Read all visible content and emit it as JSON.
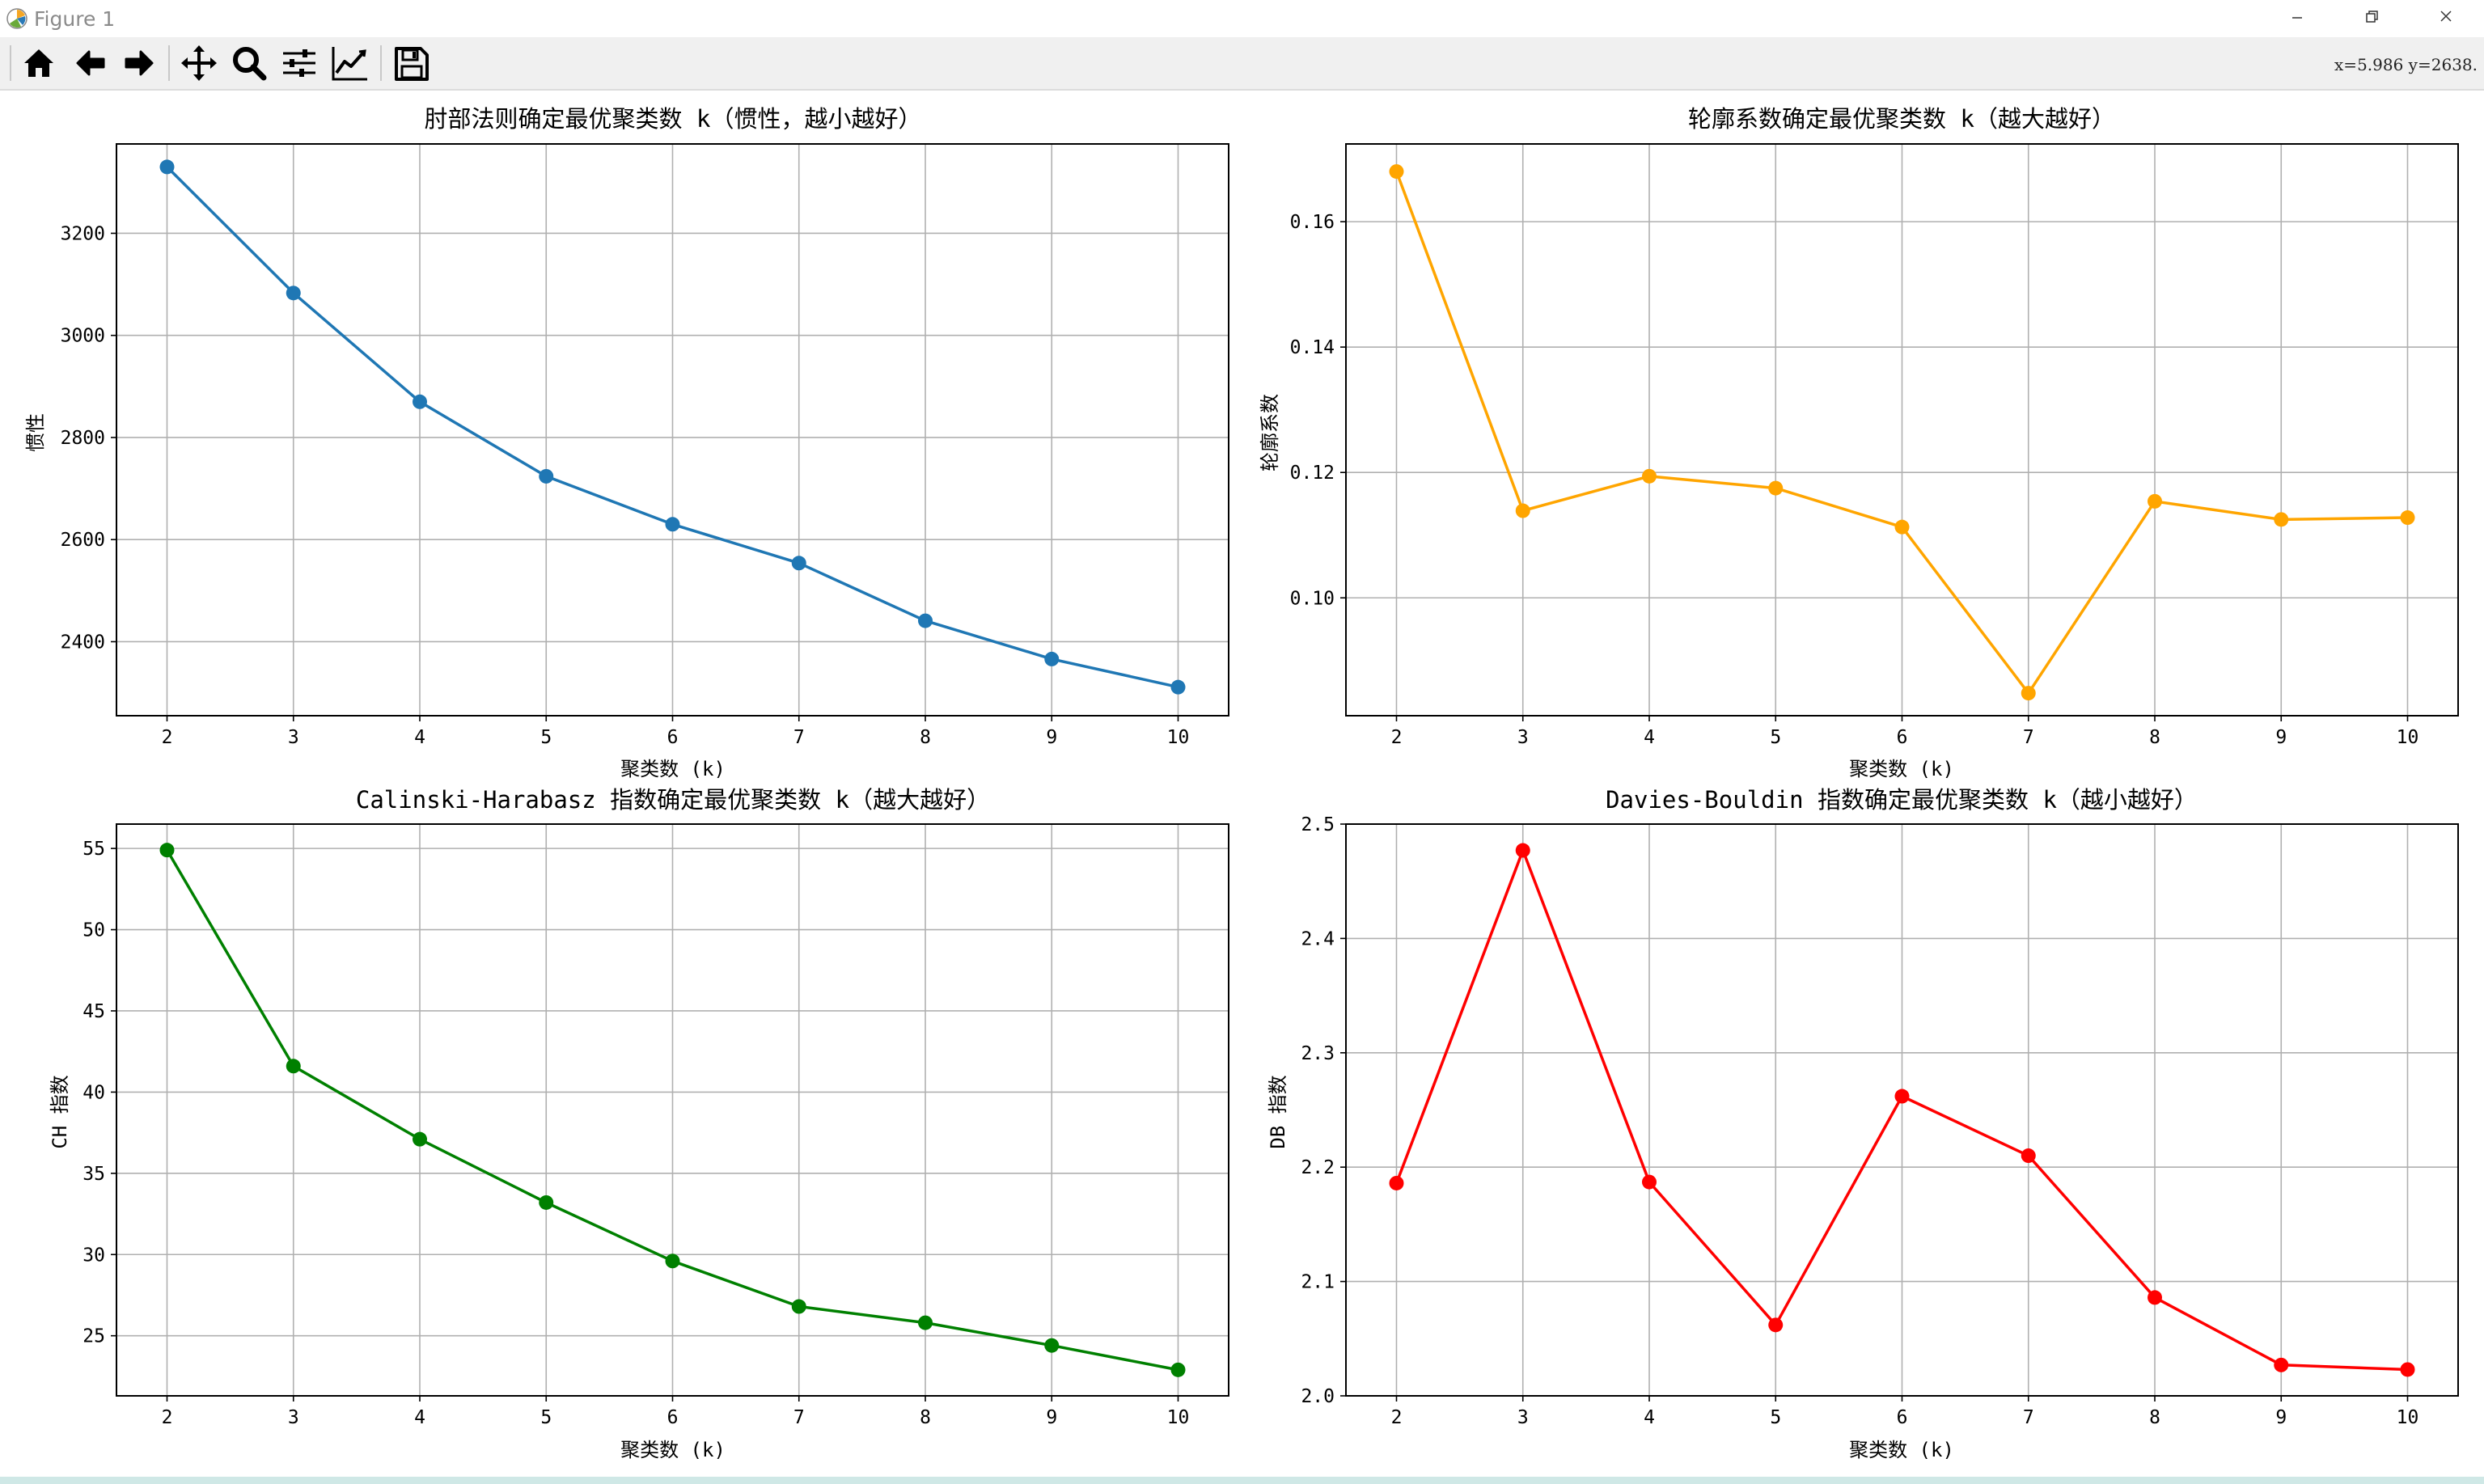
{
  "window": {
    "title": "Figure 1"
  },
  "toolbar": {
    "buttons": [
      "home-icon",
      "back-arrow-icon",
      "forward-arrow-icon",
      "pan-icon",
      "zoom-icon",
      "configure-subplots-icon",
      "edit-axes-icon",
      "save-icon"
    ],
    "coords": "x=5.986 y=2638."
  },
  "chart_data": [
    {
      "type": "line",
      "title": "肘部法则确定最优聚类数 k（惯性，越小越好）",
      "xlabel": "聚类数 (k)",
      "ylabel": "惯性",
      "x": [
        2,
        3,
        4,
        5,
        6,
        7,
        8,
        9,
        10
      ],
      "values": [
        3330,
        3083,
        2870,
        2724,
        2630,
        2554,
        2441,
        2366,
        2311
      ],
      "xlim": [
        1.6,
        10.4
      ],
      "ylim": [
        2255,
        3375
      ],
      "yticks": [
        2400,
        2600,
        2800,
        3000,
        3200
      ],
      "ytick_labels": [
        "2400",
        "2600",
        "2800",
        "3000",
        "3200"
      ],
      "xticks": [
        2,
        3,
        4,
        5,
        6,
        7,
        8,
        9,
        10
      ],
      "color": "#1f77b4",
      "grid": true
    },
    {
      "type": "line",
      "title": "轮廓系数确定最优聚类数 k（越大越好）",
      "xlabel": "聚类数 (k)",
      "ylabel": "轮廓系数",
      "x": [
        2,
        3,
        4,
        5,
        6,
        7,
        8,
        9,
        10
      ],
      "values": [
        0.168,
        0.1139,
        0.1194,
        0.1175,
        0.1113,
        0.0848,
        0.1154,
        0.1125,
        0.1128
      ],
      "xlim": [
        1.6,
        10.4
      ],
      "ylim": [
        0.0812,
        0.1724
      ],
      "yticks": [
        0.1,
        0.12,
        0.14,
        0.16
      ],
      "ytick_labels": [
        "0.10",
        "0.12",
        "0.14",
        "0.16"
      ],
      "xticks": [
        2,
        3,
        4,
        5,
        6,
        7,
        8,
        9,
        10
      ],
      "color": "#ffa500",
      "grid": true
    },
    {
      "type": "line",
      "title": "Calinski-Harabasz 指数确定最优聚类数 k（越大越好）",
      "xlabel": "聚类数 (k)",
      "ylabel": "CH 指数",
      "x": [
        2,
        3,
        4,
        5,
        6,
        7,
        8,
        9,
        10
      ],
      "values": [
        54.9,
        41.6,
        37.1,
        33.2,
        29.6,
        26.8,
        25.8,
        24.4,
        22.9
      ],
      "xlim": [
        1.6,
        10.4
      ],
      "ylim": [
        21.3,
        56.5
      ],
      "yticks": [
        25,
        30,
        35,
        40,
        45,
        50,
        55
      ],
      "ytick_labels": [
        "25",
        "30",
        "35",
        "40",
        "45",
        "50",
        "55"
      ],
      "xticks": [
        2,
        3,
        4,
        5,
        6,
        7,
        8,
        9,
        10
      ],
      "color": "#008000",
      "grid": true
    },
    {
      "type": "line",
      "title": "Davies-Bouldin 指数确定最优聚类数 k（越小越好）",
      "xlabel": "聚类数 (k)",
      "ylabel": "DB 指数",
      "x": [
        2,
        3,
        4,
        5,
        6,
        7,
        8,
        9,
        10
      ],
      "values": [
        2.186,
        2.477,
        2.187,
        2.062,
        2.262,
        2.21,
        2.086,
        2.027,
        2.023
      ],
      "xlim": [
        1.6,
        10.4
      ],
      "ylim": [
        2.0,
        2.5
      ],
      "yticks": [
        2.0,
        2.1,
        2.2,
        2.3,
        2.4,
        2.5
      ],
      "ytick_labels": [
        "2.0",
        "2.1",
        "2.2",
        "2.3",
        "2.4",
        "2.5"
      ],
      "xticks": [
        2,
        3,
        4,
        5,
        6,
        7,
        8,
        9,
        10
      ],
      "color": "#ff0000",
      "grid": true
    }
  ]
}
